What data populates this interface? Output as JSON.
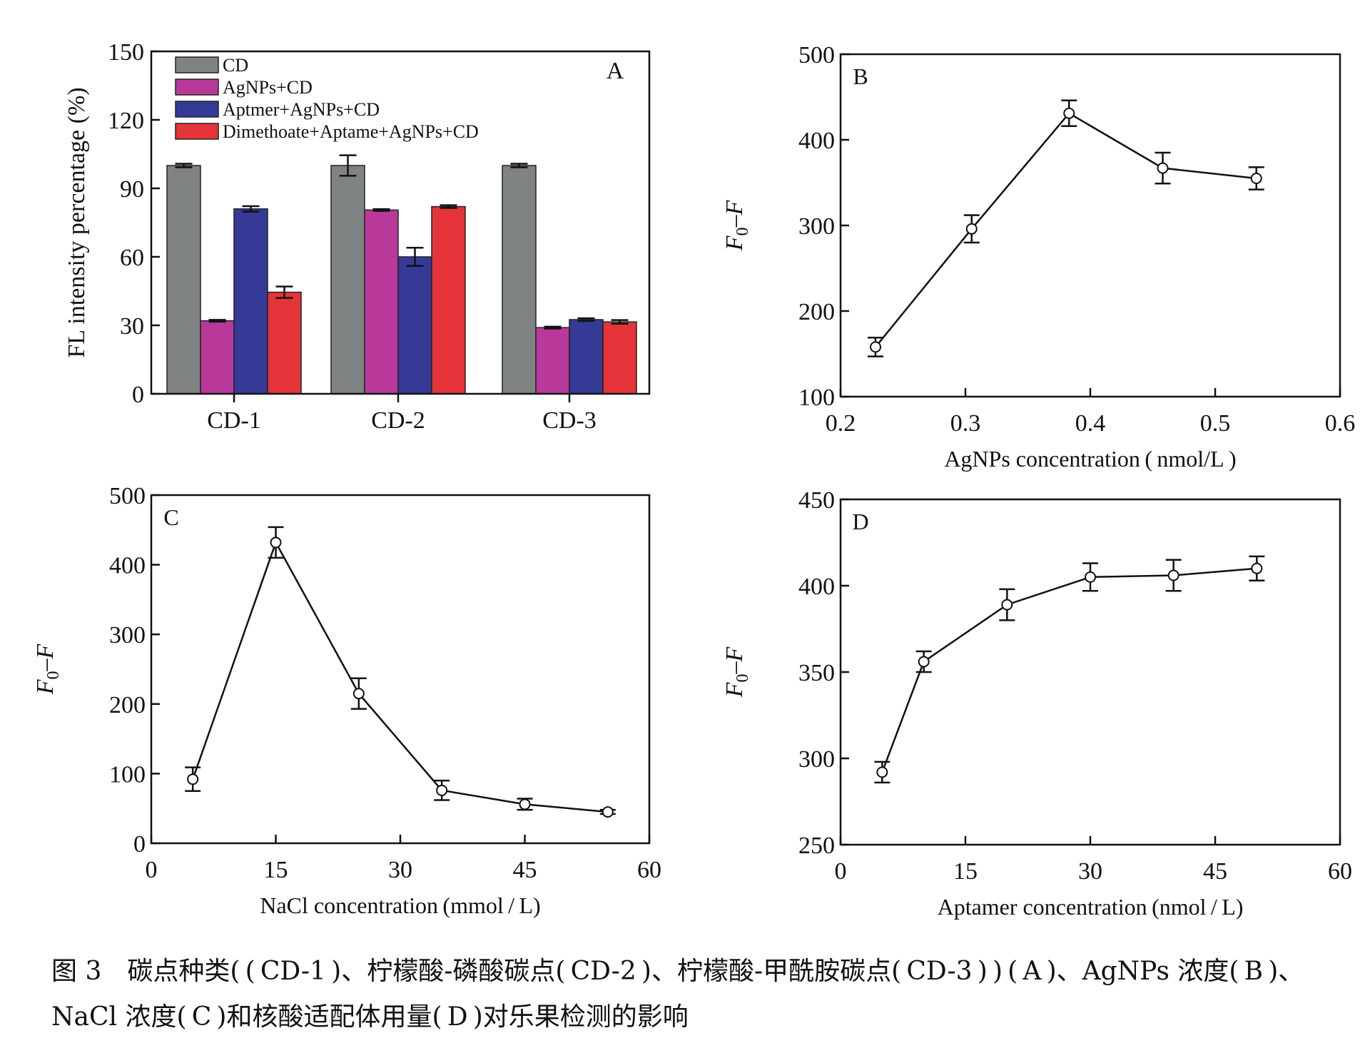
{
  "chart_data": [
    {
      "panel": "A",
      "type": "bar",
      "categories": [
        "CD-1",
        "CD-2",
        "CD-3"
      ],
      "series": [
        {
          "name": "CD",
          "color": "#7f8383",
          "values": [
            100,
            100,
            100
          ],
          "errors": [
            0.8,
            4.5,
            0.8
          ]
        },
        {
          "name": "AgNPs+CD",
          "color": "#b8399a",
          "values": [
            32,
            80.5,
            29
          ],
          "errors": [
            0.4,
            0.4,
            0.4
          ]
        },
        {
          "name": "Aptmer+AgNPs+CD",
          "color": "#343a96",
          "values": [
            81,
            60,
            32.5
          ],
          "errors": [
            1.2,
            4,
            0.6
          ]
        },
        {
          "name": "Dimethoate+Aptame+AgNPs+CD",
          "color": "#e5333a",
          "values": [
            44.5,
            82,
            31.5
          ],
          "errors": [
            2.5,
            0.6,
            0.8
          ]
        }
      ],
      "ylabel": "FL intensity percentage (%)",
      "xlabel": "",
      "ylim": [
        0,
        150
      ],
      "yticks": [
        0,
        30,
        60,
        90,
        120,
        150
      ],
      "legend": "top-left"
    },
    {
      "panel": "B",
      "type": "line",
      "x": [
        0.228,
        0.305,
        0.383,
        0.458,
        0.533
      ],
      "y": [
        158,
        296,
        431,
        367,
        355
      ],
      "errors": [
        11,
        16,
        15,
        18,
        13
      ],
      "xlabel": "AgNPs  concentration ( nmol/L )",
      "ylabel": "F0–F",
      "xlim": [
        0.2,
        0.6
      ],
      "ylim": [
        100,
        500
      ],
      "xticks": [
        "0.2",
        "0.3",
        "0.4",
        "0.5",
        "0.6"
      ],
      "yticks": [
        "100",
        "200",
        "300",
        "400",
        "500"
      ]
    },
    {
      "panel": "C",
      "type": "line",
      "x": [
        5,
        15,
        25,
        35,
        45,
        55
      ],
      "y": [
        92,
        432,
        215,
        76,
        56,
        45
      ],
      "errors": [
        17,
        22,
        22,
        14,
        8,
        3
      ],
      "xlabel": "NaCl  concentration (mmol / L)",
      "ylabel": "F0–F",
      "xlim": [
        0,
        60
      ],
      "ylim": [
        0,
        500
      ],
      "xticks": [
        "0",
        "15",
        "30",
        "45",
        "60"
      ],
      "yticks": [
        "0",
        "100",
        "200",
        "300",
        "400",
        "500"
      ]
    },
    {
      "panel": "D",
      "type": "line",
      "x": [
        5,
        10,
        20,
        30,
        40,
        50
      ],
      "y": [
        292,
        356,
        389,
        405,
        406,
        410
      ],
      "errors": [
        6,
        6,
        9,
        8,
        9,
        7
      ],
      "xlabel": "Aptamer  concentration (nmol / L)",
      "ylabel": "F0–F",
      "xlim": [
        0,
        60
      ],
      "ylim": [
        250,
        450
      ],
      "xticks": [
        "0",
        "15",
        "30",
        "45",
        "60"
      ],
      "yticks": [
        "250",
        "300",
        "350",
        "400",
        "450"
      ]
    }
  ],
  "caption": {
    "line1": "图 3　碳点种类( ( CD-1 )、柠檬酸-磷酸碳点( CD-2 )、柠檬酸-甲酰胺碳点( CD-3 ) ) ( A )、AgNPs 浓度( B )、",
    "line2": "NaCl 浓度( C )和核酸适配体用量( D )对乐果检测的影响"
  }
}
